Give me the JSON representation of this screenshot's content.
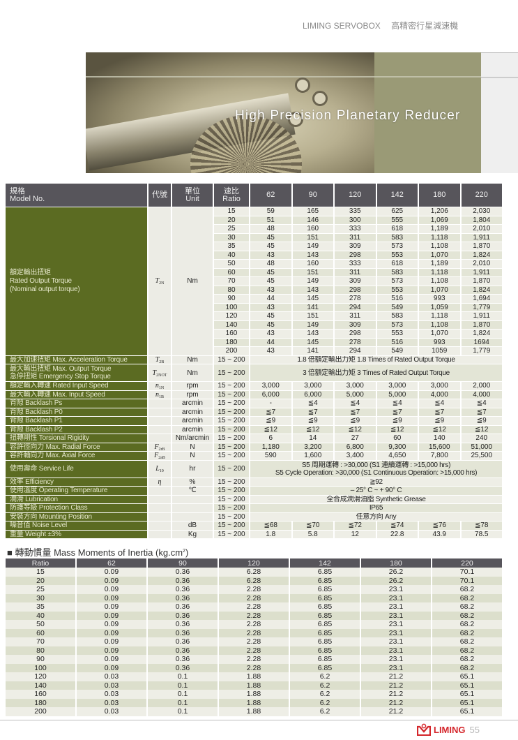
{
  "header": {
    "brand": "LIMING SERVOBOX",
    "subtitle_zh": "高精密行星減速機"
  },
  "banner": {
    "title": "High Precision Planetary Reducer"
  },
  "spec_table": {
    "headers": {
      "model_zh": "規格",
      "model_en": "Model No.",
      "code": "代號",
      "unit_zh": "單位",
      "unit_en": "Unit",
      "ratio_zh": "速比",
      "ratio_en": "Ratio"
    },
    "models": [
      "62",
      "90",
      "120",
      "142",
      "180",
      "220"
    ],
    "rated_torque": {
      "label_zh": "額定輸出扭矩",
      "label_en": "Rated Output Torque",
      "label_en2": "(Nominal output torque)",
      "code": "T",
      "code_sub": "2N",
      "unit": "Nm",
      "rows": [
        {
          "ratio": "15",
          "values": [
            "59",
            "165",
            "335",
            "625",
            "1,206",
            "2,030"
          ]
        },
        {
          "ratio": "20",
          "values": [
            "51",
            "146",
            "300",
            "555",
            "1,069",
            "1,804"
          ]
        },
        {
          "ratio": "25",
          "values": [
            "48",
            "160",
            "333",
            "618",
            "1,189",
            "2,010"
          ]
        },
        {
          "ratio": "30",
          "values": [
            "45",
            "151",
            "311",
            "583",
            "1,118",
            "1,911"
          ]
        },
        {
          "ratio": "35",
          "values": [
            "45",
            "149",
            "309",
            "573",
            "1,108",
            "1,870"
          ]
        },
        {
          "ratio": "40",
          "values": [
            "43",
            "143",
            "298",
            "553",
            "1,070",
            "1,824"
          ]
        },
        {
          "ratio": "50",
          "values": [
            "48",
            "160",
            "333",
            "618",
            "1,189",
            "2,010"
          ]
        },
        {
          "ratio": "60",
          "values": [
            "45",
            "151",
            "311",
            "583",
            "1,118",
            "1,911"
          ]
        },
        {
          "ratio": "70",
          "values": [
            "45",
            "149",
            "309",
            "573",
            "1,108",
            "1,870"
          ]
        },
        {
          "ratio": "80",
          "values": [
            "43",
            "143",
            "298",
            "553",
            "1,070",
            "1,824"
          ]
        },
        {
          "ratio": "90",
          "values": [
            "44",
            "145",
            "278",
            "516",
            "993",
            "1,694"
          ]
        },
        {
          "ratio": "100",
          "values": [
            "43",
            "141",
            "294",
            "549",
            "1,059",
            "1,779"
          ]
        },
        {
          "ratio": "120",
          "values": [
            "45",
            "151",
            "311",
            "583",
            "1,118",
            "1,911"
          ]
        },
        {
          "ratio": "140",
          "values": [
            "45",
            "149",
            "309",
            "573",
            "1,108",
            "1,870"
          ]
        },
        {
          "ratio": "160",
          "values": [
            "43",
            "143",
            "298",
            "553",
            "1,070",
            "1,824"
          ]
        },
        {
          "ratio": "180",
          "values": [
            "44",
            "145",
            "278",
            "516",
            "993",
            "1694"
          ]
        },
        {
          "ratio": "200",
          "values": [
            "43",
            "141",
            "294",
            "549",
            "1059",
            "1,779"
          ]
        }
      ]
    },
    "rows": [
      {
        "label": [
          "最大加速扭矩 Max. Acceleration Torque"
        ],
        "code": "T",
        "code_sub": "2B",
        "unit": "Nm",
        "ratio": "15 ~ 200",
        "span": [
          "1.8 倍額定輸出力矩  1.8 Times of Rated Output Torque"
        ]
      },
      {
        "label": [
          "最大輸出扭矩  Max. Output Torque",
          "急停扭矩  Emergency Stop Torque"
        ],
        "code": "T",
        "code_sub": "2NOT",
        "unit": "Nm",
        "ratio": "15 ~ 200",
        "span": [
          "3 倍額定輸出力矩  3 Times of Rated Output Torque"
        ]
      },
      {
        "label": [
          "額定輸入轉速  Rated Input Speed"
        ],
        "code": "n",
        "code_sub": "1N",
        "unit": "rpm",
        "ratio": "15 ~ 200",
        "values": [
          "3,000",
          "3,000",
          "3,000",
          "3,000",
          "3,000",
          "2,000"
        ]
      },
      {
        "label": [
          "最大輸入轉速  Max. Input Speed"
        ],
        "code": "n",
        "code_sub": "1B",
        "unit": "rpm",
        "ratio": "15 ~ 200",
        "values": [
          "6,000",
          "6,000",
          "5,000",
          "5,000",
          "4,000",
          "4,000"
        ]
      },
      {
        "label": [
          "背隙  Backlash Ps"
        ],
        "code": "",
        "code_sub": "",
        "unit": "arcmin",
        "ratio": "15 ~ 200",
        "values": [
          "-",
          "≦4",
          "≦4",
          "≦4",
          "≦4",
          "≦4"
        ]
      },
      {
        "label": [
          "背隙  Backlash P0"
        ],
        "code": "",
        "code_sub": "",
        "unit": "arcmin",
        "ratio": "15 ~ 200",
        "values": [
          "≦7",
          "≦7",
          "≦7",
          "≦7",
          "≦7",
          "≦7"
        ]
      },
      {
        "label": [
          "背隙  Backlash P1"
        ],
        "code": "",
        "code_sub": "",
        "unit": "arcmin",
        "ratio": "15 ~ 200",
        "values": [
          "≦9",
          "≦9",
          "≦9",
          "≦9",
          "≦9",
          "≦9"
        ]
      },
      {
        "label": [
          "背隙  Backlash P2"
        ],
        "code": "",
        "code_sub": "",
        "unit": "arcmin",
        "ratio": "15 ~ 200",
        "values": [
          "≦12",
          "≦12",
          "≦12",
          "≦12",
          "≦12",
          "≦12"
        ]
      },
      {
        "label": [
          "扭轉剛性  Torsional Rigidity"
        ],
        "code": "",
        "code_sub": "",
        "unit": "Nm/arcmin",
        "ratio": "15 ~ 200",
        "values": [
          "6",
          "14",
          "27",
          "60",
          "140",
          "240"
        ]
      },
      {
        "label": [
          "容許徑向力  Max. Radial Force"
        ],
        "code": "F",
        "code_sub": "2rB",
        "unit": "N",
        "ratio": "15 ~ 200",
        "values": [
          "1,180",
          "3,200",
          "6,800",
          "9,300",
          "15,600",
          "51,000"
        ]
      },
      {
        "label": [
          "容許軸向力  Max. Axial Force"
        ],
        "code": "F",
        "code_sub": "2aB",
        "unit": "N",
        "ratio": "15 ~ 200",
        "values": [
          "590",
          "1,600",
          "3,400",
          "4,650",
          "7,800",
          "25,500"
        ]
      },
      {
        "label": [
          "使用壽命  Service Life"
        ],
        "code": "L",
        "code_sub": "10",
        "unit": "hr",
        "ratio": "15 ~ 200",
        "span": [
          "S5 周期運轉 : >30,000 (S1 連續運轉 : >15,000 hrs)",
          "S5 Cycle Operation: >30,000 (S1 Continuous Operation: >15,000 hrs)"
        ]
      },
      {
        "label": [
          "效率  Efficiency"
        ],
        "code": "η",
        "code_sub": "",
        "unit": "%",
        "ratio": "15 ~ 200",
        "span": [
          "≧92"
        ]
      },
      {
        "label": [
          "使用溫度  Operating Temperature"
        ],
        "code": "",
        "code_sub": "",
        "unit": "℃",
        "ratio": "15 ~ 200",
        "span": [
          "– 25° C  ~  + 90° C"
        ]
      },
      {
        "label": [
          "潤滑  Lubrication"
        ],
        "code": "",
        "code_sub": "",
        "unit": "",
        "ratio": "15 ~ 200",
        "span": [
          "全合成潤滑油脂  Synthetic Grease"
        ]
      },
      {
        "label": [
          "防護等級  Protection Class"
        ],
        "code": "",
        "code_sub": "",
        "unit": "",
        "ratio": "15 ~ 200",
        "span": [
          "IP65"
        ]
      },
      {
        "label": [
          "安裝方向  Mounting Position"
        ],
        "code": "",
        "code_sub": "",
        "unit": "",
        "ratio": "15 ~ 200",
        "span": [
          "任意方向  Any"
        ]
      },
      {
        "label": [
          "噪音值  Noise Level"
        ],
        "code": "",
        "code_sub": "",
        "unit": "dB",
        "ratio": "15 ~ 200",
        "values": [
          "≦68",
          "≦70",
          "≦72",
          "≦74",
          "≦76",
          "≦78"
        ]
      },
      {
        "label": [
          "重量  Weight  ±3%"
        ],
        "code": "",
        "code_sub": "",
        "unit": "Kg",
        "ratio": "15 ~ 200",
        "values": [
          "1.8",
          "5.8",
          "12",
          "22.8",
          "43.9",
          "78.5"
        ]
      }
    ]
  },
  "inertia": {
    "title": "轉動慣量 Mass Moments of Inertia (kg.cm",
    "title_sup": "2",
    "title_end": ")",
    "headers": [
      "Ratio",
      "62",
      "90",
      "120",
      "142",
      "180",
      "220"
    ],
    "rows": [
      [
        "15",
        "0.09",
        "0.36",
        "6.28",
        "6.85",
        "26.2",
        "70.1"
      ],
      [
        "20",
        "0.09",
        "0.36",
        "6.28",
        "6.85",
        "26.2",
        "70.1"
      ],
      [
        "25",
        "0.09",
        "0.36",
        "2.28",
        "6.85",
        "23.1",
        "68.2"
      ],
      [
        "30",
        "0.09",
        "0.36",
        "2.28",
        "6.85",
        "23.1",
        "68.2"
      ],
      [
        "35",
        "0.09",
        "0.36",
        "2.28",
        "6.85",
        "23.1",
        "68.2"
      ],
      [
        "40",
        "0.09",
        "0.36",
        "2.28",
        "6.85",
        "23.1",
        "68.2"
      ],
      [
        "50",
        "0.09",
        "0.36",
        "2.28",
        "6.85",
        "23.1",
        "68.2"
      ],
      [
        "60",
        "0.09",
        "0.36",
        "2.28",
        "6.85",
        "23.1",
        "68.2"
      ],
      [
        "70",
        "0.09",
        "0.36",
        "2.28",
        "6.85",
        "23.1",
        "68.2"
      ],
      [
        "80",
        "0.09",
        "0.36",
        "2.28",
        "6.85",
        "23.1",
        "68.2"
      ],
      [
        "90",
        "0.09",
        "0.36",
        "2.28",
        "6.85",
        "23.1",
        "68.2"
      ],
      [
        "100",
        "0.09",
        "0.36",
        "2.28",
        "6.85",
        "23.1",
        "68.2"
      ],
      [
        "120",
        "0.03",
        "0.1",
        "1.88",
        "6.2",
        "21.2",
        "65.1"
      ],
      [
        "140",
        "0.03",
        "0.1",
        "1.88",
        "6.2",
        "21.2",
        "65.1"
      ],
      [
        "160",
        "0.03",
        "0.1",
        "1.88",
        "6.2",
        "21.2",
        "65.1"
      ],
      [
        "180",
        "0.03",
        "0.1",
        "1.88",
        "6.2",
        "21.2",
        "65.1"
      ],
      [
        "200",
        "0.03",
        "0.1",
        "1.88",
        "6.2",
        "21.2",
        "65.1"
      ]
    ]
  },
  "footer": {
    "logo_text": "LIMING",
    "page_number": "55"
  },
  "colors": {
    "label_green": "#5b6b22",
    "header_gray": "#57555b",
    "brand_red": "#d4262b",
    "banner_olive": "#9a9a76"
  }
}
